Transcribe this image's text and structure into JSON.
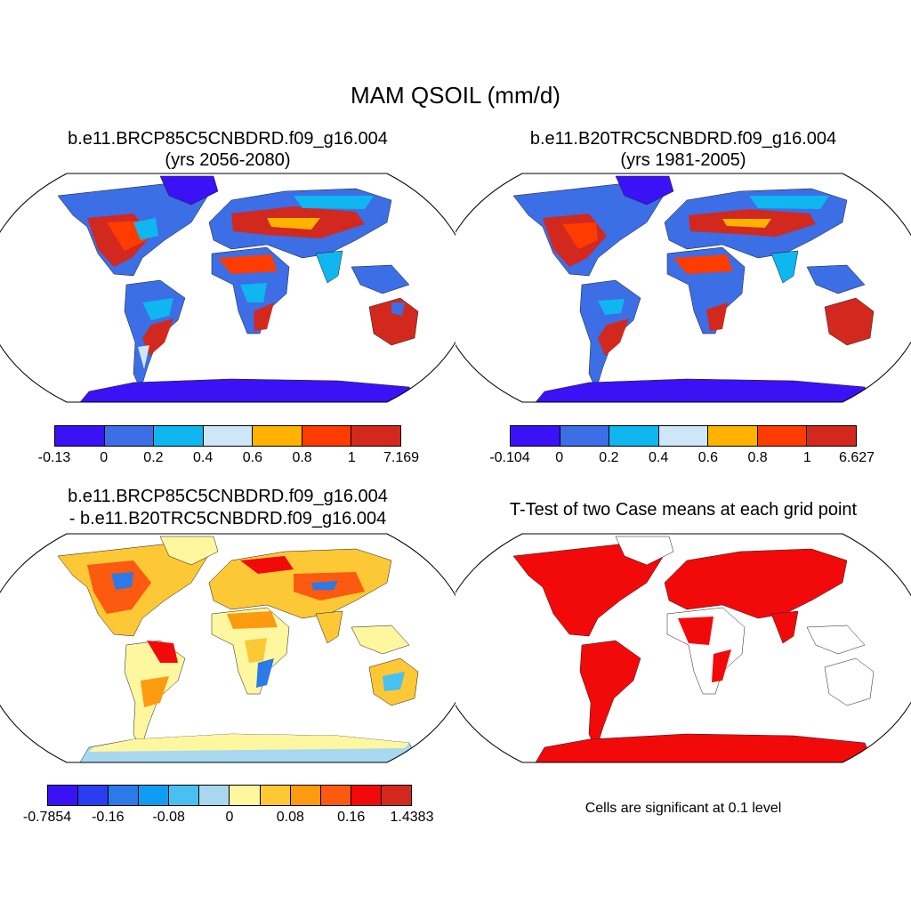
{
  "figure": {
    "title": "MAM QSOIL (mm/d)",
    "panels": [
      {
        "id": "future",
        "title_line1": "b.e11.BRCP85C5CNBDRD.f09_g16.004",
        "title_line2": "(yrs 2056-2080)",
        "colorbar": {
          "colors": [
            "#3a12f5",
            "#3c6ee6",
            "#10b6f0",
            "#cde6f8",
            "#ffb300",
            "#ff3c00",
            "#d2281e"
          ],
          "labels": [
            "-0.13",
            "0",
            "0.2",
            "0.4",
            "0.6",
            "0.8",
            "1",
            "7.169"
          ]
        }
      },
      {
        "id": "historical",
        "title_line1": "b.e11.B20TRC5CNBDRD.f09_g16.004",
        "title_line2": "(yrs 1981-2005)",
        "colorbar": {
          "colors": [
            "#3a12f5",
            "#3c6ee6",
            "#10b6f0",
            "#cde6f8",
            "#ffb300",
            "#ff3c00",
            "#d2281e"
          ],
          "labels": [
            "-0.104",
            "0",
            "0.2",
            "0.4",
            "0.6",
            "0.8",
            "1",
            "6.627"
          ]
        }
      },
      {
        "id": "difference",
        "title_line1": "b.e11.BRCP85C5CNBDRD.f09_g16.004",
        "title_line2": "- b.e11.B20TRC5CNBDRD.f09_g16.004",
        "colorbar": {
          "colors": [
            "#3a12f5",
            "#2a3ef0",
            "#2c7ae8",
            "#109cf0",
            "#48c0f0",
            "#a7d8f0",
            "#fff7a0",
            "#fdc835",
            "#fc9a10",
            "#fc5a10",
            "#f20a0a",
            "#d2281e"
          ],
          "labels": [
            "-0.7854",
            "-0.16",
            "-0.08",
            "0",
            "0.08",
            "0.16",
            "1.4383"
          ]
        },
        "ocean_band_color": "#a7d8f0"
      },
      {
        "id": "ttest",
        "title_line1": "T-Test of two Case means at each grid point",
        "note": "Cells are significant at 0.1 level",
        "significant_color": "#f20a0a"
      }
    ]
  }
}
